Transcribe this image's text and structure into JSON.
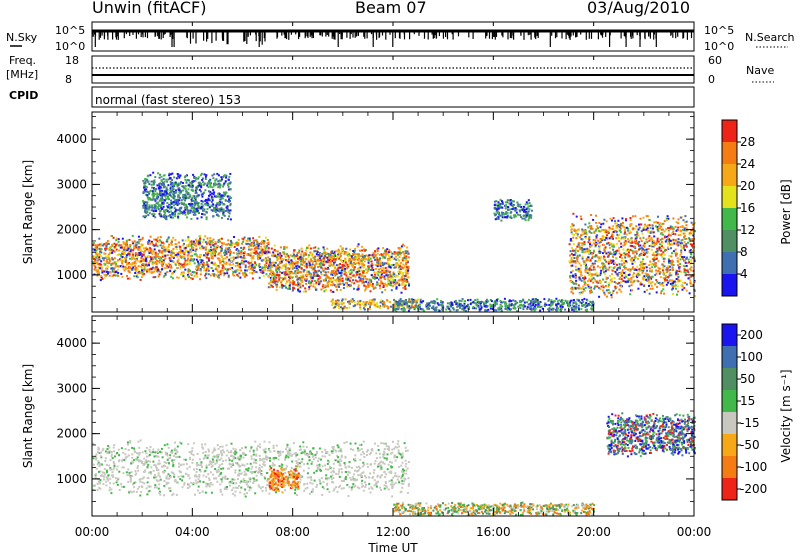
{
  "header": {
    "station": "Unwin (fitACF)",
    "beam": "Beam 07",
    "date": "03/Aug/2010"
  },
  "top_panels": {
    "nsky_label": "N.Sky",
    "nsky_ticks": [
      "10^5",
      "10^0"
    ],
    "nsearch_label": "N.Search",
    "nsearch_ticks": [
      "10^5",
      "10^0"
    ],
    "freq_label": "Freq.",
    "freq_unit": "[MHz]",
    "freq_ticks": [
      "18",
      "8"
    ],
    "nave_label": "Nave",
    "nave_ticks": [
      "60",
      "0"
    ],
    "cpid_label": "CPID",
    "cpid_text": "normal (fast stereo) 153"
  },
  "chart_data": [
    {
      "type": "heatmap",
      "panel": "power",
      "xlabel": "",
      "ylabel": "Slant Range [km]",
      "xlim": [
        0,
        24
      ],
      "ylim": [
        180,
        4600
      ],
      "yticks": [
        "1000",
        "2000",
        "3000",
        "4000"
      ],
      "colorbar_label": "Power [dB]",
      "colorbar_ticks": [
        "4",
        "8",
        "12",
        "16",
        "20",
        "24",
        "28"
      ],
      "colorbar_colors": [
        "#1a14ee",
        "#3f6fb0",
        "#4f8f62",
        "#42b84a",
        "#e3e21d",
        "#f7a817",
        "#f47c12",
        "#ee2418"
      ],
      "regions": [
        {
          "x": [
            0,
            7.0
          ],
          "y": [
            900,
            1900
          ],
          "level": "high"
        },
        {
          "x": [
            7.0,
            12.6
          ],
          "y": [
            600,
            1700
          ],
          "level": "high"
        },
        {
          "x": [
            9.5,
            13.0
          ],
          "y": [
            250,
            500
          ],
          "level": "mid"
        },
        {
          "x": [
            19.0,
            24
          ],
          "y": [
            500,
            2400
          ],
          "level": "high"
        },
        {
          "x": [
            2.0,
            5.5
          ],
          "y": [
            2200,
            3300
          ],
          "level": "low"
        },
        {
          "x": [
            12.0,
            20.0
          ],
          "y": [
            200,
            500
          ],
          "level": "low"
        },
        {
          "x": [
            16.0,
            17.5
          ],
          "y": [
            2200,
            2700
          ],
          "level": "low"
        }
      ]
    },
    {
      "type": "heatmap",
      "panel": "velocity",
      "xlabel": "Time UT",
      "ylabel": "Slant Range [km]",
      "xlim": [
        0,
        24
      ],
      "ylim": [
        180,
        4600
      ],
      "xticks": [
        "00:00",
        "04:00",
        "08:00",
        "12:00",
        "16:00",
        "20:00",
        "00:00"
      ],
      "yticks": [
        "1000",
        "2000",
        "3000",
        "4000"
      ],
      "colorbar_label": "Velocity [m s⁻¹]",
      "colorbar_ticks": [
        "200",
        "100",
        "50",
        "15",
        "-15",
        "-50",
        "-100",
        "-200"
      ],
      "colorbar_colors": [
        "#1a14ee",
        "#3f6fb0",
        "#4f8f62",
        "#42b84a",
        "#c8c8c0",
        "#f7a817",
        "#f47c12",
        "#ee2418"
      ],
      "regions": [
        {
          "x": [
            0,
            12.6
          ],
          "y": [
            600,
            1900
          ],
          "level": "ground-scatter"
        },
        {
          "x": [
            7.0,
            8.2
          ],
          "y": [
            700,
            1300
          ],
          "level": "negative"
        },
        {
          "x": [
            12.0,
            20.0
          ],
          "y": [
            200,
            500
          ],
          "level": "slow"
        },
        {
          "x": [
            20.5,
            24
          ],
          "y": [
            1500,
            2500
          ],
          "level": "positive"
        }
      ]
    }
  ]
}
